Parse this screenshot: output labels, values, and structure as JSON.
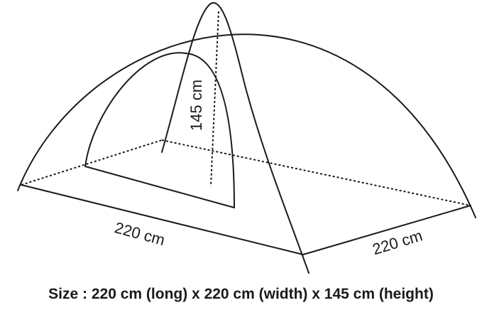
{
  "diagram": {
    "labels": {
      "length": "220 cm",
      "width": "220 cm",
      "height": "145 cm"
    }
  },
  "caption": "Size : 220 cm (long) x 220 cm (width) x 145 cm (height)"
}
